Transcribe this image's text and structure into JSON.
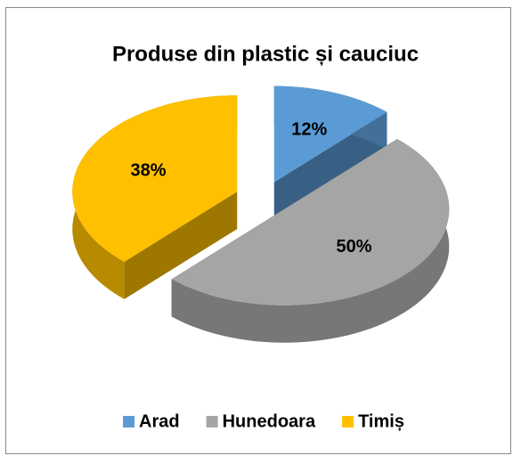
{
  "chart_data": {
    "type": "pie",
    "title": "Produse din plastic și cauciuc",
    "categories": [
      "Arad",
      "Hunedoara",
      "Timiș"
    ],
    "values": [
      12,
      50,
      38
    ],
    "value_labels": [
      "12%",
      "50%",
      "38%"
    ],
    "colors": [
      "#5b9bd5",
      "#a5a5a5",
      "#ffc000"
    ],
    "legend": "bottom"
  }
}
